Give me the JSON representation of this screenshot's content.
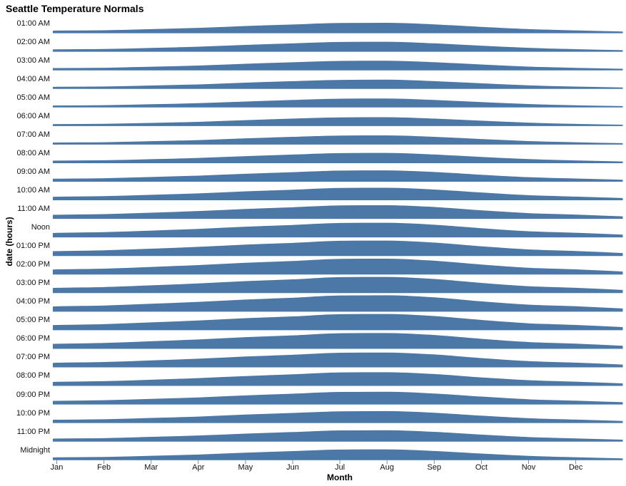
{
  "chart_data": {
    "type": "area",
    "variant": "ridgeline",
    "title": "Seattle Temperature Normals",
    "xlabel": "Month",
    "ylabel": "date (hours)",
    "grid": false,
    "legend": "none",
    "categories": [
      "Jan",
      "Feb",
      "Mar",
      "Apr",
      "May",
      "Jun",
      "Jul",
      "Aug",
      "Sep",
      "Oct",
      "Nov",
      "Dec"
    ],
    "row_value_range": [
      0,
      26
    ],
    "series": [
      {
        "name": "01:00 AM",
        "values": [
          3.2,
          3.7,
          5.5,
          7.4,
          10.3,
          12.7,
          15.0,
          15.3,
          12.9,
          9.0,
          5.5,
          3.5
        ]
      },
      {
        "name": "02:00 AM",
        "values": [
          2.9,
          3.4,
          5.1,
          7.0,
          9.8,
          12.2,
          14.4,
          14.7,
          12.3,
          8.6,
          5.2,
          3.2
        ]
      },
      {
        "name": "03:00 AM",
        "values": [
          2.7,
          3.1,
          4.8,
          6.5,
          9.3,
          11.7,
          13.8,
          14.1,
          11.8,
          8.2,
          4.9,
          3.0
        ]
      },
      {
        "name": "04:00 AM",
        "values": [
          2.4,
          2.8,
          4.4,
          6.1,
          8.8,
          11.2,
          13.2,
          13.5,
          11.2,
          7.8,
          4.6,
          2.7
        ]
      },
      {
        "name": "05:00 AM",
        "values": [
          2.2,
          2.6,
          4.1,
          5.8,
          8.4,
          10.8,
          12.8,
          13.1,
          10.8,
          7.5,
          4.4,
          2.5
        ]
      },
      {
        "name": "06:00 AM",
        "values": [
          2.1,
          2.5,
          4.0,
          5.6,
          8.3,
          10.7,
          12.6,
          12.9,
          10.7,
          7.4,
          4.3,
          2.4
        ]
      },
      {
        "name": "07:00 AM",
        "values": [
          2.4,
          2.8,
          4.4,
          6.1,
          8.8,
          11.2,
          13.2,
          13.5,
          11.2,
          7.8,
          4.6,
          2.7
        ]
      },
      {
        "name": "08:00 AM",
        "values": [
          3.1,
          3.6,
          5.3,
          7.2,
          10.0,
          12.5,
          14.7,
          15.0,
          12.6,
          8.8,
          5.4,
          3.3
        ]
      },
      {
        "name": "09:00 AM",
        "values": [
          3.9,
          4.5,
          6.5,
          8.6,
          11.5,
          14.0,
          16.5,
          16.8,
          14.3,
          10.0,
          6.2,
          4.1
        ]
      },
      {
        "name": "10:00 AM",
        "values": [
          4.7,
          5.5,
          7.6,
          9.9,
          13.0,
          15.6,
          18.3,
          18.6,
          15.9,
          11.2,
          7.1,
          4.9
        ]
      },
      {
        "name": "11:00 AM",
        "values": [
          5.5,
          6.5,
          8.7,
          11.3,
          14.5,
          17.2,
          20.1,
          20.4,
          17.6,
          12.4,
          8.0,
          5.7
        ]
      },
      {
        "name": "Noon",
        "values": [
          6.2,
          7.3,
          9.7,
          12.4,
          15.8,
          18.5,
          21.6,
          21.9,
          18.9,
          13.4,
          8.7,
          6.3
        ]
      },
      {
        "name": "01:00 PM",
        "values": [
          6.7,
          7.9,
          10.5,
          13.3,
          16.8,
          19.5,
          22.8,
          23.1,
          20.0,
          14.2,
          9.3,
          6.9
        ]
      },
      {
        "name": "02:00 PM",
        "values": [
          7.1,
          8.3,
          10.9,
          13.9,
          17.4,
          20.2,
          23.6,
          23.9,
          20.7,
          14.7,
          9.7,
          7.2
        ]
      },
      {
        "name": "03:00 PM",
        "values": [
          7.3,
          8.5,
          11.2,
          14.2,
          17.8,
          20.5,
          24.0,
          24.3,
          21.1,
          15.0,
          9.9,
          7.4
        ]
      },
      {
        "name": "04:00 PM",
        "values": [
          7.4,
          8.7,
          11.4,
          14.4,
          18.0,
          20.8,
          24.3,
          24.6,
          21.4,
          15.2,
          10.0,
          7.5
        ]
      },
      {
        "name": "05:00 PM",
        "values": [
          7.3,
          8.6,
          11.3,
          14.3,
          17.9,
          20.6,
          24.1,
          24.4,
          21.2,
          15.1,
          9.9,
          7.4
        ]
      },
      {
        "name": "06:00 PM",
        "values": [
          7.0,
          8.2,
          10.8,
          13.7,
          17.3,
          20.0,
          23.4,
          23.7,
          20.6,
          14.6,
          9.6,
          7.1
        ]
      },
      {
        "name": "07:00 PM",
        "values": [
          6.3,
          7.4,
          9.9,
          12.6,
          16.0,
          18.7,
          21.9,
          22.2,
          19.2,
          13.6,
          8.8,
          6.5
        ]
      },
      {
        "name": "08:00 PM",
        "values": [
          5.5,
          6.5,
          8.7,
          11.3,
          14.5,
          17.2,
          20.1,
          20.4,
          17.6,
          12.4,
          8.0,
          5.7
        ]
      },
      {
        "name": "09:00 PM",
        "values": [
          4.8,
          5.7,
          7.8,
          10.1,
          13.3,
          15.9,
          18.6,
          18.9,
          16.2,
          11.4,
          7.2,
          5.0
        ]
      },
      {
        "name": "10:00 PM",
        "values": [
          4.3,
          5.0,
          7.0,
          9.2,
          12.3,
          14.8,
          17.4,
          17.7,
          15.1,
          10.6,
          6.7,
          4.5
        ]
      },
      {
        "name": "11:00 PM",
        "values": [
          3.9,
          4.5,
          6.5,
          8.6,
          11.5,
          14.0,
          16.5,
          16.8,
          14.3,
          10.0,
          6.2,
          4.1
        ]
      },
      {
        "name": "Midnight",
        "values": [
          3.5,
          4.1,
          5.9,
          7.9,
          10.8,
          13.3,
          15.6,
          15.9,
          13.4,
          9.4,
          5.8,
          3.7
        ]
      }
    ],
    "colors": {
      "area_fill": "#4c78a8",
      "area_top_stroke": "#ffffff",
      "tick": "#8a8a8a",
      "label_text": "#111111",
      "title_text": "#000000"
    }
  }
}
